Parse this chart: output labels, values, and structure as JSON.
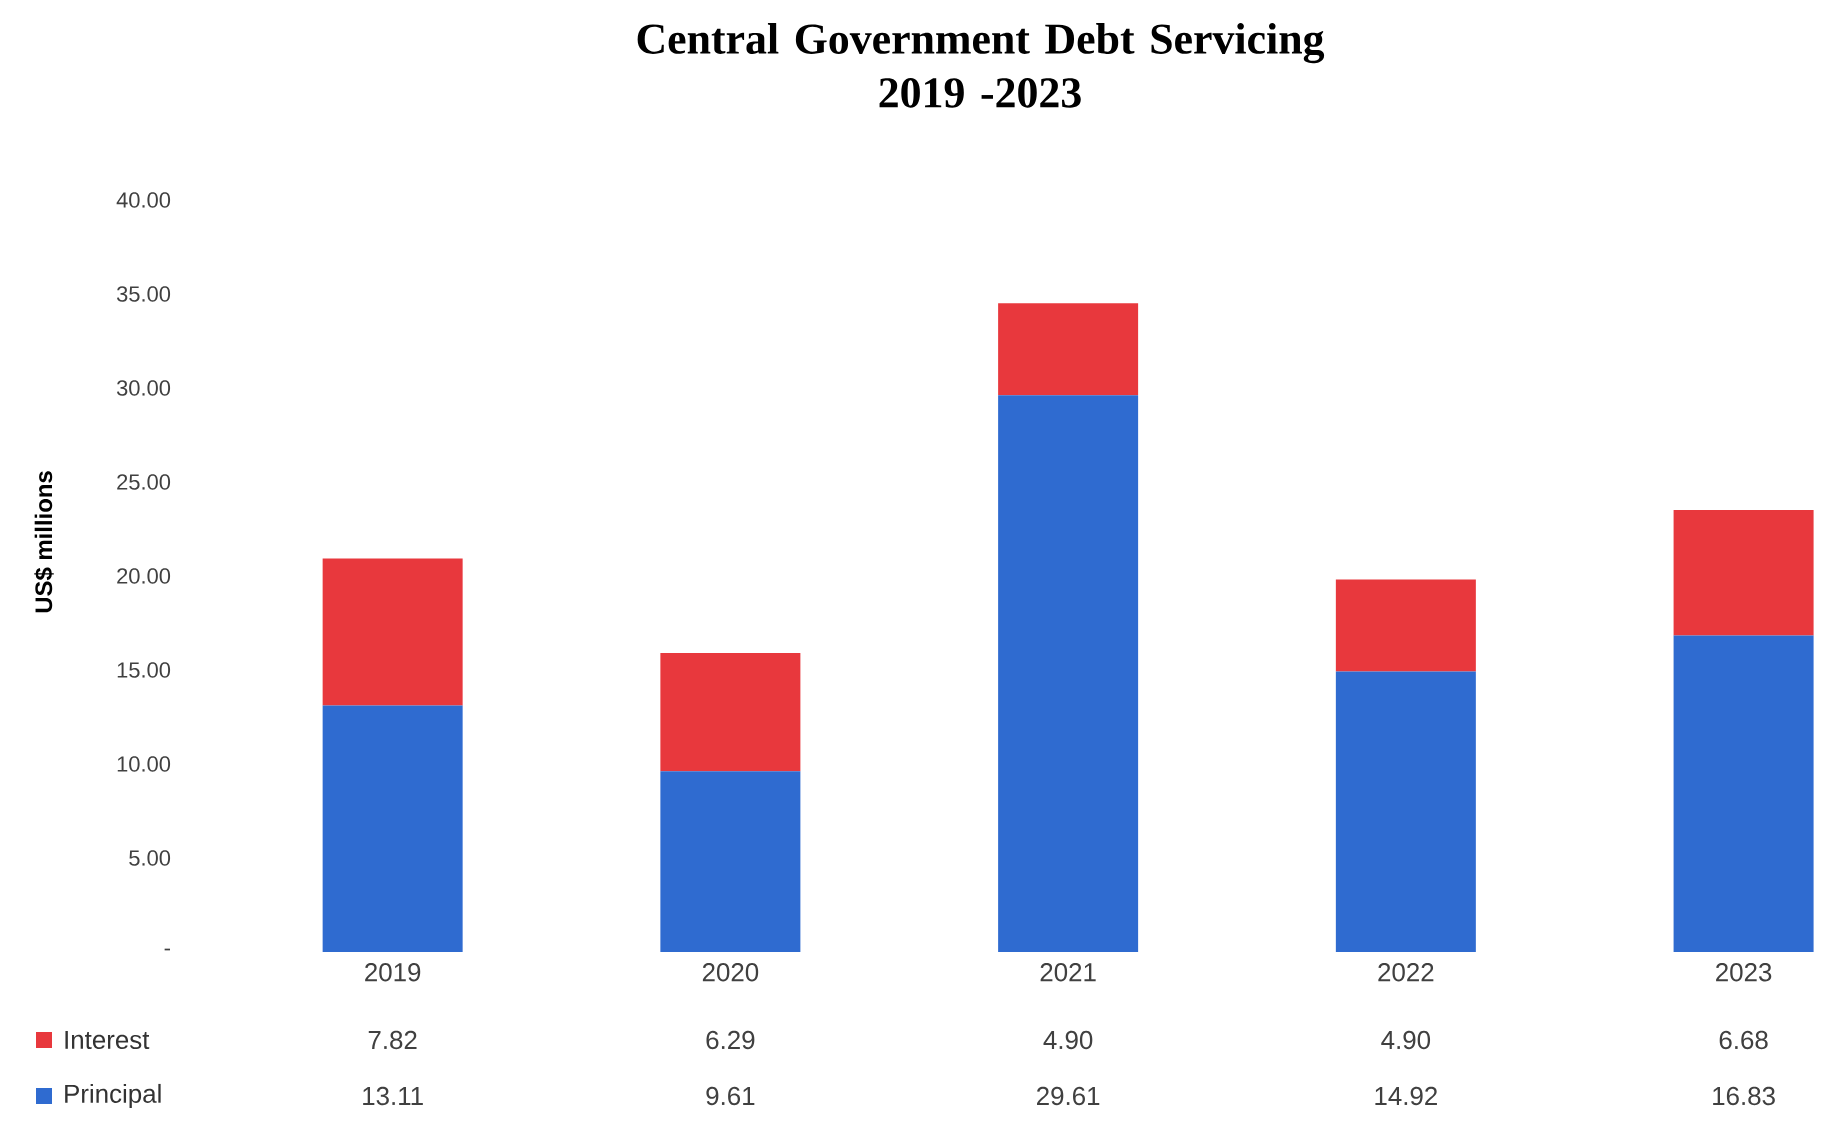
{
  "chart_data": {
    "type": "bar",
    "title": "Central Government Debt Servicing\n2019 -2023",
    "ylabel": "US$ millions",
    "categories": [
      "2019",
      "2020",
      "2021",
      "2022",
      "2023"
    ],
    "stacked": true,
    "series": [
      {
        "name": "Principal",
        "color": "#2f6bd0",
        "values": [
          13.11,
          9.61,
          29.61,
          14.92,
          16.83
        ],
        "value_labels": [
          "13.11",
          "9.61",
          "29.61",
          "14.92",
          "16.83"
        ]
      },
      {
        "name": "Interest",
        "color": "#e8383d",
        "values": [
          7.82,
          6.29,
          4.9,
          4.9,
          6.68
        ],
        "value_labels": [
          "7.82",
          "6.29",
          "4.90",
          "4.90",
          "6.68"
        ]
      }
    ],
    "ylim": [
      0,
      40
    ],
    "yticks": [
      {
        "value": 0,
        "label": "-"
      },
      {
        "value": 5,
        "label": "5.00"
      },
      {
        "value": 10,
        "label": "10.00"
      },
      {
        "value": 15,
        "label": "15.00"
      },
      {
        "value": 20,
        "label": "20.00"
      },
      {
        "value": 25,
        "label": "25.00"
      },
      {
        "value": 30,
        "label": "30.00"
      },
      {
        "value": 35,
        "label": "35.00"
      },
      {
        "value": 40,
        "label": "40.00"
      }
    ],
    "legend": "bottom left"
  }
}
